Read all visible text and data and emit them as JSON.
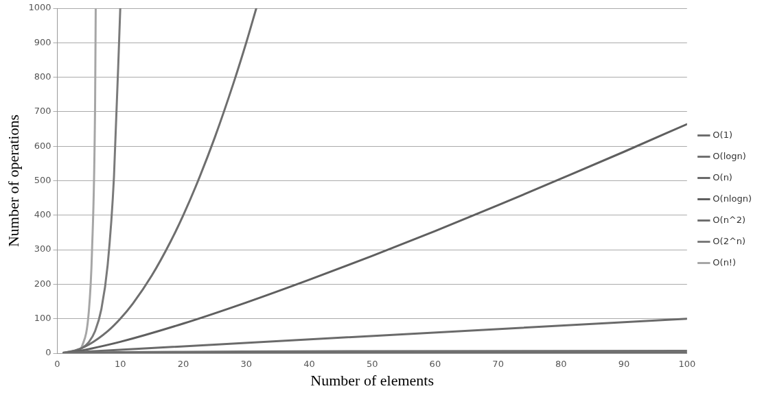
{
  "chart_data": {
    "type": "line",
    "xlabel": "Number of elements",
    "ylabel": "Number of operations",
    "xlim": [
      0,
      100
    ],
    "xticks": [
      0,
      10,
      20,
      30,
      40,
      50,
      60,
      70,
      80,
      90,
      100
    ],
    "ylim": [
      0,
      1000
    ],
    "yticks": [
      0,
      100,
      200,
      300,
      400,
      500,
      600,
      700,
      800,
      900,
      1000
    ],
    "grid": "y",
    "legend": "right",
    "marker": "none",
    "line_style": "solid",
    "series": [
      {
        "name": "O(1)",
        "color": "#6d6d6d",
        "x": [
          1,
          100
        ],
        "values": [
          1,
          1
        ]
      },
      {
        "name": "O(logn)",
        "color": "#707070",
        "x": [
          1,
          2,
          5,
          10,
          20,
          50,
          100
        ],
        "values": [
          0,
          1,
          2,
          3,
          4,
          6,
          7
        ]
      },
      {
        "name": "O(n)",
        "color": "#6a6a6a",
        "x": [
          1,
          100
        ],
        "values": [
          1,
          100
        ]
      },
      {
        "name": "O(nlogn)",
        "color": "#5f5f5f",
        "x": [
          1,
          2,
          3,
          5,
          10,
          20,
          30,
          40,
          50,
          60,
          70,
          80,
          90,
          100
        ],
        "values": [
          0,
          2,
          5,
          12,
          33,
          86,
          147,
          213,
          282,
          354,
          429,
          506,
          584,
          664
        ]
      },
      {
        "name": "O(n^2)",
        "color": "#6e6e6e",
        "x": [
          1,
          3,
          5,
          8,
          10,
          12,
          15,
          18,
          20,
          22,
          25,
          28,
          30,
          31.6
        ],
        "values": [
          1,
          9,
          25,
          64,
          100,
          144,
          225,
          324,
          400,
          484,
          625,
          784,
          900,
          1000
        ]
      },
      {
        "name": "O(2^n)",
        "color": "#7a7a7a",
        "x": [
          1,
          2,
          3,
          4,
          5,
          6,
          7,
          8,
          9,
          10
        ],
        "values": [
          2,
          4,
          8,
          16,
          32,
          64,
          128,
          256,
          512,
          1000
        ]
      },
      {
        "name": "O(n!)",
        "color": "#a6a6a6",
        "x": [
          1,
          2,
          3,
          4,
          5,
          5.5,
          6,
          6.1
        ],
        "values": [
          1,
          2,
          6,
          24,
          120,
          290,
          720,
          1000
        ]
      }
    ]
  }
}
